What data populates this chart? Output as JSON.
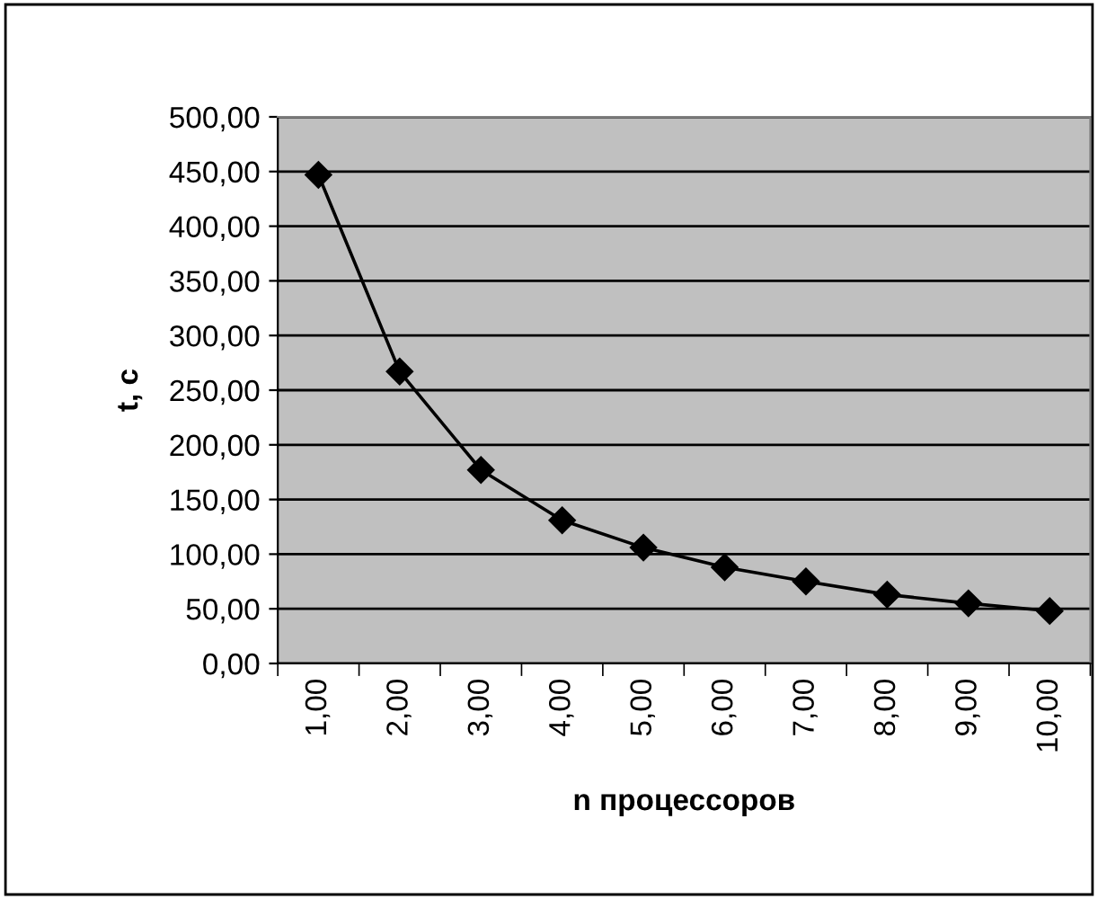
{
  "chart_data": {
    "type": "line",
    "xlabel": "n процессоров",
    "ylabel": "t, c",
    "categories": [
      "1,00",
      "2,00",
      "3,00",
      "4,00",
      "5,00",
      "6,00",
      "7,00",
      "8,00",
      "9,00",
      "10,00"
    ],
    "series": [
      {
        "color": "#000000",
        "values": [
          447,
          267,
          177,
          131,
          106,
          88,
          75,
          63,
          55,
          48
        ]
      }
    ],
    "ylim": [
      0,
      500
    ],
    "yticks": [
      {
        "value": 0,
        "label": "0,00"
      },
      {
        "value": 50,
        "label": "50,00"
      },
      {
        "value": 100,
        "label": "100,00"
      },
      {
        "value": 150,
        "label": "150,00"
      },
      {
        "value": 200,
        "label": "200,00"
      },
      {
        "value": 250,
        "label": "250,00"
      },
      {
        "value": 300,
        "label": "300,00"
      },
      {
        "value": 350,
        "label": "350,00"
      },
      {
        "value": 400,
        "label": "400,00"
      },
      {
        "value": 450,
        "label": "450,00"
      },
      {
        "value": 500,
        "label": "500,00"
      }
    ],
    "grid": "y",
    "marker": "diamond",
    "line_style": "solid"
  }
}
